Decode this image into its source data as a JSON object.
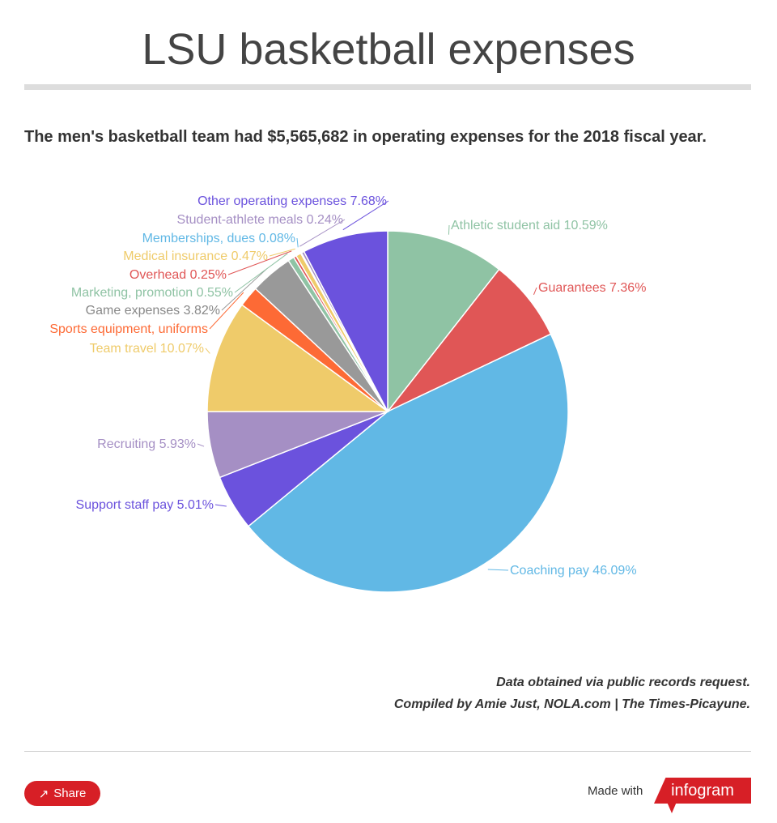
{
  "header": {
    "title": "LSU basketball expenses",
    "subtitle": "The men's basketball team had $5,565,682 in operating expenses for the 2018 fiscal year."
  },
  "chart_data": {
    "type": "pie",
    "categories": [
      "Athletic student aid",
      "Guarantees",
      "Coaching pay",
      "Support staff pay",
      "Recruiting",
      "Team travel",
      "Sports equipment, uniforms",
      "Game expenses",
      "Marketing, promotion",
      "Overhead",
      "Medical insurance",
      "Memberships, dues",
      "Student-athlete meals",
      "Other operating expenses"
    ],
    "values": [
      10.59,
      7.36,
      46.09,
      5.01,
      5.93,
      10.07,
      1.86,
      3.82,
      0.55,
      0.25,
      0.47,
      0.08,
      0.24,
      7.68
    ],
    "labels": [
      "Athletic student aid 10.59%",
      "Guarantees 7.36%",
      "Coaching pay 46.09%",
      "Support staff pay 5.01%",
      "Recruiting 5.93%",
      "Team travel 10.07%",
      "Sports equipment, uniforms",
      "Game expenses 3.82%",
      "Marketing, promotion 0.55%",
      "Overhead 0.25%",
      "Medical insurance 0.47%",
      "Memberships, dues 0.08%",
      "Student-athlete meals 0.24%",
      "Other operating expenses 7.68%"
    ],
    "colors": [
      "#8fc3a4",
      "#e05656",
      "#61b8e5",
      "#6b52dd",
      "#a58fc4",
      "#efcb6a",
      "#fd6a35",
      "#999999",
      "#8fc3a4",
      "#e05656",
      "#efcb6a",
      "#61b8e5",
      "#a58fc4",
      "#6b52dd"
    ],
    "unit": "%"
  },
  "footer": {
    "source1": "Data obtained via public records request.",
    "source2": "Compiled by Amie Just, NOLA.com | The Times-Picayune.",
    "share": "Share",
    "made_with": "Made with",
    "brand": "infogram"
  }
}
